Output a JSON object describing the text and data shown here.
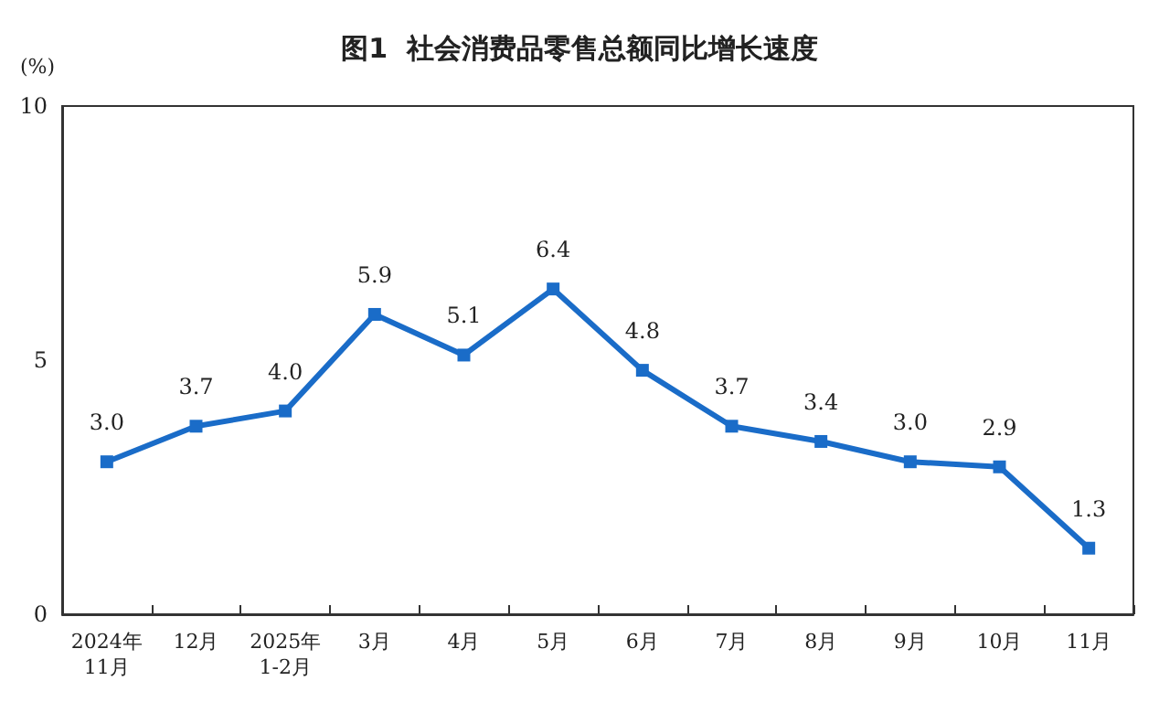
{
  "chart_data": {
    "type": "line",
    "title": "图1  社会消费品零售总额同比增长速度",
    "ylabel": "(%)",
    "categories": [
      "2024年\n11月",
      "12月",
      "2025年\n1-2月",
      "3月",
      "4月",
      "5月",
      "6月",
      "7月",
      "8月",
      "9月",
      "10月",
      "11月"
    ],
    "series": [
      {
        "color": "#1a6cc8",
        "values": [
          3.0,
          3.7,
          4.0,
          5.9,
          5.1,
          6.4,
          4.8,
          3.7,
          3.4,
          3.0,
          2.9,
          1.3
        ],
        "value_labels": [
          "3.0",
          "3.7",
          "4.0",
          "5.9",
          "5.1",
          "6.4",
          "4.8",
          "3.7",
          "3.4",
          "3.0",
          "2.9",
          "1.3"
        ]
      }
    ],
    "ylim": [
      0,
      10
    ],
    "yticks": [
      0,
      5,
      10
    ],
    "grid": false,
    "marker": "square",
    "line_style": "solid"
  }
}
